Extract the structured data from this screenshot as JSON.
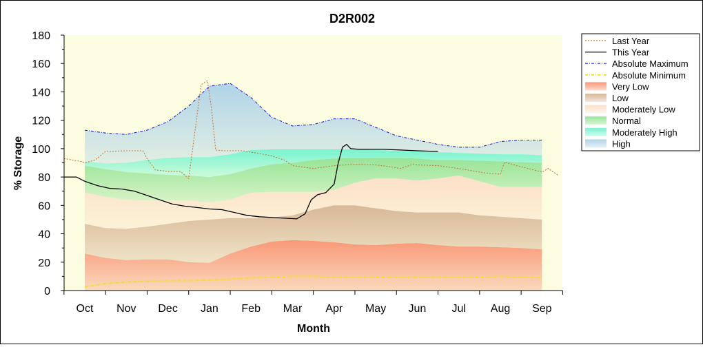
{
  "chart_data": {
    "type": "area",
    "title": "D2R002",
    "xlabel": "Month",
    "ylabel": "% Storage",
    "ylim": [
      0,
      180
    ],
    "yticks": [
      0,
      20,
      40,
      60,
      80,
      100,
      120,
      140,
      160,
      180
    ],
    "categories": [
      "Oct",
      "Nov",
      "Dec",
      "Jan",
      "Feb",
      "Mar",
      "Apr",
      "May",
      "Jun",
      "Jul",
      "Aug",
      "Sep"
    ],
    "grid": false,
    "legend_position": "right",
    "colors": {
      "plot_background": "#fcfce0",
      "last_year": "#c87838",
      "this_year": "#000000",
      "absolute_maximum": "#2020c8",
      "absolute_minimum": "#f0e020",
      "very_low": "#f89878",
      "low": "#d8b898",
      "moderately_low": "#fce0c8",
      "normal": "#98e498",
      "moderately_high": "#78f4d0",
      "high": "#b0d4e8"
    },
    "band_x": [
      0,
      0.5,
      1,
      1.5,
      2,
      2.5,
      3,
      3.5,
      4,
      4.5,
      5,
      5.5,
      6,
      6.5,
      7,
      7.5,
      8,
      8.5,
      9,
      9.5,
      10,
      10.5,
      11
    ],
    "bands": [
      {
        "name": "Very Low",
        "color_key": "very_low",
        "upper": [
          26,
          23,
          21.5,
          22,
          22,
          20,
          19.5,
          26,
          31,
          34.5,
          35.5,
          35,
          34,
          32.5,
          32,
          33,
          33.5,
          32,
          31,
          31,
          30.5,
          30,
          29
        ]
      },
      {
        "name": "Low",
        "color_key": "low",
        "upper": [
          47,
          44,
          43.5,
          45,
          47,
          49,
          50,
          51,
          51,
          51.5,
          53,
          57,
          60,
          60,
          58,
          56,
          55,
          55,
          55,
          53,
          52,
          51,
          50
        ]
      },
      {
        "name": "Moderately Low",
        "color_key": "moderately_low",
        "upper": [
          69,
          66,
          64,
          63.5,
          63.5,
          63.5,
          62,
          64,
          69,
          69.5,
          69.5,
          69.5,
          71,
          76,
          79,
          79,
          77.5,
          79,
          81,
          77,
          73,
          73,
          73
        ]
      },
      {
        "name": "Normal",
        "color_key": "normal",
        "upper": [
          88,
          85.5,
          83.5,
          82.5,
          81.5,
          81,
          80,
          82,
          86,
          89,
          90,
          92,
          93,
          93.5,
          93.5,
          93.5,
          93,
          92,
          92,
          91.5,
          91,
          90.5,
          90
        ]
      },
      {
        "name": "Moderately High",
        "color_key": "moderately_high",
        "upper": [
          91,
          89.5,
          90,
          92,
          93.5,
          94,
          94,
          96,
          99,
          99.5,
          99.5,
          99.5,
          99.5,
          99.5,
          99,
          98.5,
          98,
          97.5,
          97,
          96.5,
          96,
          96,
          95.5
        ]
      },
      {
        "name": "High",
        "color_key": "high",
        "upper": [
          113,
          111,
          110,
          113,
          119,
          130,
          144,
          146,
          136,
          122,
          116,
          117,
          121,
          121,
          115,
          109,
          106,
          103,
          101,
          101,
          105,
          106,
          106
        ]
      }
    ],
    "series": [
      {
        "name": "Last Year",
        "color_key": "last_year",
        "style": "dotted",
        "x": [
          -0.5,
          -0.1,
          0,
          0.25,
          0.5,
          1,
          1.2,
          1.4,
          1.5,
          1.7,
          2,
          2.3,
          2.5,
          2.65,
          2.8,
          2.95,
          3.05,
          3.15,
          3.35,
          3.5,
          3.8,
          4.5,
          4.8,
          5,
          5.5,
          6,
          6.5,
          7,
          7.3,
          7.6,
          7.9,
          8,
          8.5,
          9,
          9.3,
          9.6,
          10,
          10.1,
          10.4,
          10.8,
          11,
          11.15,
          11.4
        ],
        "values": [
          93,
          91,
          90,
          92,
          98,
          98.5,
          98.5,
          98.5,
          93,
          85,
          84,
          84,
          79,
          112,
          145,
          148,
          128,
          99,
          98.5,
          98.5,
          98.5,
          95,
          92,
          88,
          86,
          88,
          89,
          88.5,
          87.5,
          86,
          89,
          88.5,
          88,
          86,
          84.5,
          83,
          82,
          90.5,
          88,
          85,
          83.5,
          86,
          81
        ]
      },
      {
        "name": "This Year",
        "color_key": "this_year",
        "style": "solid",
        "x": [
          -0.5,
          -0.2,
          0,
          0.3,
          0.6,
          0.9,
          1.2,
          1.5,
          1.8,
          2.1,
          2.4,
          2.7,
          3,
          3.3,
          3.6,
          3.9,
          4.2,
          4.5,
          4.8,
          5.1,
          5.3,
          5.45,
          5.6,
          5.8,
          6,
          6.1,
          6.2,
          6.3,
          6.4,
          6.6,
          6.8,
          7.2,
          7.6,
          8,
          8.5
        ],
        "values": [
          80,
          80,
          77,
          74,
          72,
          71.5,
          70,
          67,
          64,
          61,
          59.5,
          58.5,
          57.5,
          57,
          55,
          53,
          52,
          51.5,
          51,
          50.5,
          54,
          64,
          67.5,
          69,
          75,
          90,
          101,
          103,
          100,
          99.5,
          99.5,
          99.5,
          99,
          98.5,
          98
        ]
      },
      {
        "name": "Absolute Maximum",
        "color_key": "absolute_maximum",
        "style": "dashdot",
        "x": [
          0,
          0.5,
          1,
          1.5,
          2,
          2.5,
          3,
          3.5,
          4,
          4.5,
          5,
          5.5,
          6,
          6.5,
          7,
          7.5,
          8,
          8.5,
          9,
          9.5,
          10,
          10.5,
          11
        ],
        "values": [
          113,
          111,
          110,
          113,
          119,
          130,
          144,
          146,
          136,
          122,
          116,
          117,
          121,
          121,
          115,
          109,
          106,
          103,
          101,
          101,
          105,
          106,
          106
        ]
      },
      {
        "name": "Absolute Minimum",
        "color_key": "absolute_minimum",
        "style": "dashdot",
        "x": [
          0,
          0.5,
          1,
          1.5,
          2,
          2.5,
          3,
          3.5,
          4,
          4.5,
          5,
          5.5,
          6,
          6.5,
          7,
          7.5,
          8,
          8.5,
          9,
          9.5,
          10,
          10.5,
          11
        ],
        "values": [
          2.5,
          5,
          6,
          6.5,
          7,
          7,
          7.5,
          8,
          9,
          9.5,
          10,
          10,
          9.5,
          9.5,
          9.5,
          9.5,
          9.5,
          9.5,
          9.5,
          9.5,
          10,
          9.5,
          9
        ]
      }
    ],
    "legend": [
      {
        "label": "Last Year",
        "kind": "line",
        "color_key": "last_year",
        "style": "dotted"
      },
      {
        "label": "This Year",
        "kind": "line",
        "color_key": "this_year",
        "style": "solid"
      },
      {
        "label": "Absolute Maximum",
        "kind": "line",
        "color_key": "absolute_maximum",
        "style": "dashdot"
      },
      {
        "label": "Absolute Minimum",
        "kind": "line",
        "color_key": "absolute_minimum",
        "style": "dashdot"
      },
      {
        "label": "Very Low",
        "kind": "band",
        "color_key": "very_low"
      },
      {
        "label": "Low",
        "kind": "band",
        "color_key": "low"
      },
      {
        "label": "Moderately Low",
        "kind": "band",
        "color_key": "moderately_low"
      },
      {
        "label": "Normal",
        "kind": "band",
        "color_key": "normal"
      },
      {
        "label": "Moderately High",
        "kind": "band",
        "color_key": "moderately_high"
      },
      {
        "label": "High",
        "kind": "band",
        "color_key": "high"
      }
    ]
  }
}
